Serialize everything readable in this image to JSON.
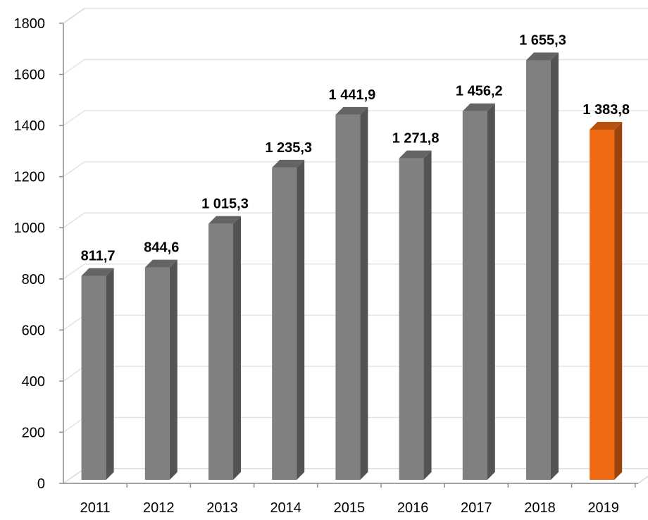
{
  "chart_data": {
    "type": "bar",
    "title": "",
    "xlabel": "",
    "ylabel": "",
    "categories": [
      "2011",
      "2012",
      "2013",
      "2014",
      "2015",
      "2016",
      "2017",
      "2018",
      "2019"
    ],
    "values": [
      811.7,
      844.6,
      1015.3,
      1235.3,
      1441.9,
      1271.8,
      1456.2,
      1655.3,
      1383.8
    ],
    "data_labels": [
      "811,7",
      "844,6",
      "1 015,3",
      "1 235,3",
      "1 441,9",
      "1 271,8",
      "1 456,2",
      "1 655,3",
      "1 383,8"
    ],
    "ylim": [
      0,
      1800
    ],
    "y_ticks": [
      0,
      200,
      400,
      600,
      800,
      1000,
      1200,
      1400,
      1600,
      1800
    ],
    "grid": true,
    "legend": "none",
    "style": "3d-column",
    "colors": {
      "default_bar": "#808080",
      "highlight_bar": "#ee6911"
    },
    "highlight_category": "2019"
  }
}
